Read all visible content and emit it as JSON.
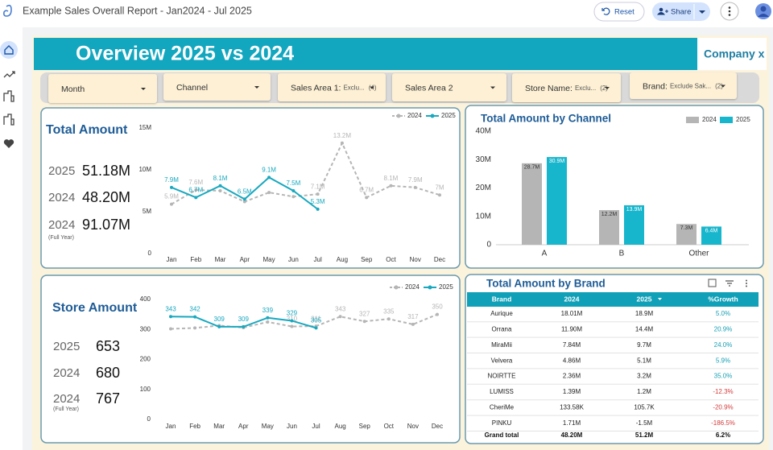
{
  "header": {
    "title": "Example Sales Overall Report - Jan2024 - Jul 2025",
    "reset": "Reset",
    "share": "Share"
  },
  "banner": {
    "title": "Overview 2025 vs 2024",
    "company": "Company x"
  },
  "filters": [
    {
      "label": "Month"
    },
    {
      "label": "Channel"
    },
    {
      "label": "Sales Area 1:",
      "detail": "Exclu...",
      "count": "(4)"
    },
    {
      "label": "Sales Area 2"
    },
    {
      "label": "Store Name:",
      "detail": "Exclu...",
      "count": "(2)"
    },
    {
      "label": "Brand:",
      "detail": "Exclude Sak...",
      "count": "(2)"
    }
  ],
  "kpis": [
    {
      "rows": [
        {
          "year": "2025",
          "value": "51.18M"
        },
        {
          "year": "2024",
          "value": "48.20M"
        },
        {
          "year": "2024",
          "value": "91.07M",
          "note": "(Full Year)"
        }
      ]
    },
    {
      "rows": [
        {
          "year": "2025",
          "value": "653"
        },
        {
          "year": "2024",
          "value": "680"
        },
        {
          "year": "2024",
          "value": "767",
          "note": "(Full Year)"
        }
      ]
    }
  ],
  "chart_data": [
    {
      "type": "line",
      "title": "Total Amount",
      "categories": [
        "Jan",
        "Feb",
        "Mar",
        "Apr",
        "May",
        "Jun",
        "Jul",
        "Aug",
        "Sep",
        "Oct",
        "Nov",
        "Dec"
      ],
      "ylim": [
        0,
        15000000
      ],
      "yticks": [
        0,
        {
          "value": 5000000,
          "label": "5M"
        },
        {
          "value": 10000000,
          "label": "10M"
        },
        {
          "value": 15000000,
          "label": "15M"
        }
      ],
      "legend": "top-right",
      "series": [
        {
          "name": "2024",
          "color": "#b5b5b5",
          "dashed": true,
          "values": [
            5900000,
            7600000,
            7500000,
            6200000,
            7300000,
            6800000,
            7100000,
            13200000,
            6700000,
            8100000,
            7900000,
            7000000
          ],
          "value_labels": [
            "5.9M",
            "7.6M",
            null,
            null,
            null,
            null,
            "7.1M",
            "13.2M",
            "6.7M",
            "8.1M",
            "7.9M",
            "7M"
          ]
        },
        {
          "name": "2025",
          "color": "#18a8bf",
          "dashed": false,
          "values": [
            7900000,
            6700000,
            8100000,
            6500000,
            9100000,
            7500000,
            5300000,
            null,
            null,
            null,
            null,
            null
          ],
          "value_labels": [
            "7.9M",
            "6.7M",
            "8.1M",
            "6.5M",
            "9.1M",
            "7.5M",
            "5.3M",
            null,
            null,
            null,
            null,
            null
          ]
        }
      ]
    },
    {
      "type": "bar",
      "title": "Total Amount by Channel",
      "categories": [
        "A",
        "B",
        "Other"
      ],
      "ylim": [
        0,
        40000000
      ],
      "yticks": [
        0,
        {
          "value": 10000000,
          "label": "10M"
        },
        {
          "value": 20000000,
          "label": "20M"
        },
        {
          "value": 30000000,
          "label": "30M"
        },
        {
          "value": 40000000,
          "label": "40M"
        }
      ],
      "legend": "top-right",
      "series": [
        {
          "name": "2024",
          "color": "#b5b5b5",
          "values": [
            28700000,
            12200000,
            7300000
          ],
          "value_labels": [
            "28.7M",
            "12.2M",
            "7.3M"
          ]
        },
        {
          "name": "2025",
          "color": "#18b6cc",
          "values": [
            30900000,
            13900000,
            6400000
          ],
          "value_labels": [
            "30.9M",
            "13.9M",
            "6.4M"
          ]
        }
      ]
    },
    {
      "type": "line",
      "title": "Store Amount",
      "categories": [
        "Jan",
        "Feb",
        "Mar",
        "Apr",
        "May",
        "Jun",
        "Jul",
        "Aug",
        "Sep",
        "Oct",
        "Nov",
        "Dec"
      ],
      "ylim": [
        0,
        400
      ],
      "yticks": [
        0,
        100,
        200,
        300,
        400
      ],
      "legend": "top-right",
      "series": [
        {
          "name": "2024",
          "color": "#b5b5b5",
          "dashed": true,
          "values": [
            302,
            305,
            313,
            306,
            325,
            310,
            311,
            343,
            327,
            335,
            317,
            350
          ],
          "value_labels": [
            null,
            null,
            null,
            null,
            null,
            "310",
            "311",
            "343",
            "327",
            "335",
            "317",
            "350"
          ]
        },
        {
          "name": "2025",
          "color": "#18a8bf",
          "dashed": false,
          "values": [
            343,
            342,
            309,
            309,
            339,
            329,
            305,
            null,
            null,
            null,
            null,
            null
          ],
          "value_labels": [
            "343",
            "342",
            "309",
            "309",
            "339",
            "329",
            "305",
            null,
            null,
            null,
            null,
            null
          ]
        }
      ]
    }
  ],
  "table": {
    "title": "Total Amount by Brand",
    "columns": [
      "Brand",
      "2024",
      "2025",
      "%Growth"
    ],
    "rows": [
      [
        "Aurique",
        "18.01M",
        "18.9M",
        "5.0%"
      ],
      [
        "Orrana",
        "11.90M",
        "14.4M",
        "20.9%"
      ],
      [
        "MiraMii",
        "7.84M",
        "9.7M",
        "24.0%"
      ],
      [
        "Velvera",
        "4.86M",
        "5.1M",
        "5.9%"
      ],
      [
        "NOIRTTE",
        "2.36M",
        "3.2M",
        "35.0%"
      ],
      [
        "LUMISS",
        "1.39M",
        "1.2M",
        "-12.3%"
      ],
      [
        "CheriMe",
        "133.58K",
        "105.7K",
        "-20.9%"
      ],
      [
        "PINKU",
        "1.71M",
        "-1.5M",
        "-186.5%"
      ]
    ],
    "total": [
      "Grand total",
      "48.20M",
      "51.2M",
      "6.2%"
    ]
  }
}
